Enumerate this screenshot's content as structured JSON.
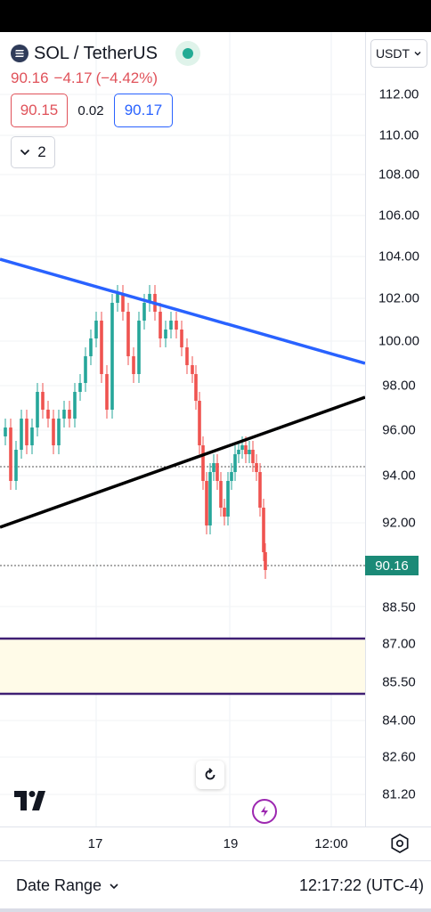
{
  "header": {
    "symbol": "SOL / TetherUS",
    "last_price": "90.16",
    "change": "−4.17",
    "change_pct": "(−4.42%)",
    "bid": "90.15",
    "spread": "0.02",
    "ask": "90.17",
    "collapsed_count": "2"
  },
  "currency": {
    "label": "USDT"
  },
  "price_axis": {
    "labels": [
      "112.00",
      "110.00",
      "108.00",
      "106.00",
      "104.00",
      "102.00",
      "100.00",
      "98.00",
      "96.00",
      "94.00",
      "92.00",
      "88.50",
      "87.00",
      "85.50",
      "84.00",
      "82.60",
      "81.20"
    ],
    "current_price_tag": "90.16"
  },
  "time_axis": {
    "labels": [
      "17",
      "19",
      "12:00"
    ]
  },
  "bottom_bar": {
    "date_range_label": "Date Range",
    "clock": "12:17:22 (UTC-4)"
  },
  "colors": {
    "up": "#26a69a",
    "down": "#ef5350",
    "upper_trendline": "#2962ff",
    "lower_trendline": "#000000",
    "zone_lines": "#3f1f74",
    "zone_fill": "#fffbe8",
    "price_tag_bg": "#1b8a77"
  },
  "icons": {
    "symbol": "solana-icon",
    "live": "live-status-icon",
    "collapse": "chevron-down-icon",
    "currency": "chevron-down-icon",
    "reset": "reset-icon",
    "alert": "lightning-icon",
    "settings": "settings-icon",
    "logo": "tradingview-logo-icon",
    "date_range": "chevron-down-icon"
  }
}
